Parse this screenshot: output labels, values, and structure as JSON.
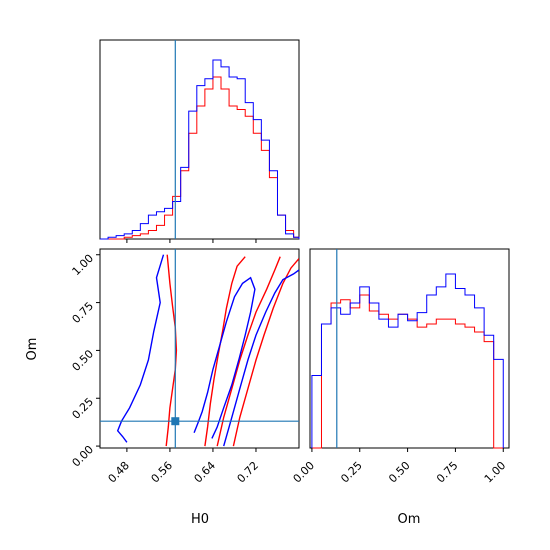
{
  "chart_data": {
    "type": "corner",
    "parameters": [
      "H0",
      "Om"
    ],
    "truths": {
      "H0": 0.57,
      "Om": 0.13
    },
    "colors": {
      "series_a": "#ff0000",
      "series_b": "#0000ff",
      "truth": "#1f77b4"
    },
    "xlabels": [
      "H0",
      "Om"
    ],
    "ylabel_2d": "Om",
    "H0_ticks": [
      "0.48",
      "0.56",
      "0.64",
      "0.72"
    ],
    "Om_ticks": [
      "0.00",
      "0.25",
      "0.50",
      "0.75",
      "1.00"
    ],
    "ranges": {
      "H0": [
        0.43,
        0.8
      ],
      "Om": [
        -0.01,
        1.03
      ]
    },
    "hist_H0": {
      "bin_edges": [
        0.43,
        0.445,
        0.46,
        0.475,
        0.49,
        0.505,
        0.52,
        0.535,
        0.55,
        0.565,
        0.58,
        0.595,
        0.61,
        0.625,
        0.64,
        0.655,
        0.67,
        0.685,
        0.7,
        0.715,
        0.73,
        0.745,
        0.76,
        0.775,
        0.79,
        0.8
      ],
      "series": [
        {
          "color": "red",
          "counts": [
            0,
            0,
            0,
            1,
            2,
            3,
            5,
            8,
            14,
            25,
            40,
            62,
            78,
            88,
            95,
            88,
            78,
            76,
            72,
            62,
            52,
            36,
            14,
            5,
            1
          ]
        },
        {
          "color": "blue",
          "counts": [
            0,
            1,
            2,
            3,
            5,
            9,
            14,
            16,
            18,
            22,
            42,
            75,
            90,
            94,
            105,
            101,
            95,
            94,
            80,
            70,
            58,
            40,
            14,
            3,
            1
          ]
        }
      ]
    },
    "hist_Om": {
      "bin_edges": [
        0.0,
        0.05,
        0.1,
        0.15,
        0.2,
        0.25,
        0.3,
        0.35,
        0.4,
        0.45,
        0.5,
        0.55,
        0.6,
        0.65,
        0.7,
        0.75,
        0.8,
        0.85,
        0.9,
        0.95,
        1.0
      ],
      "series": [
        {
          "color": "red",
          "counts": [
            0.0,
            0.77,
            0.9,
            0.92,
            0.87,
            0.95,
            0.85,
            0.83,
            0.8,
            0.83,
            0.8,
            0.75,
            0.77,
            0.8,
            0.8,
            0.77,
            0.75,
            0.72,
            0.66,
            0.0
          ]
        },
        {
          "color": "blue",
          "counts": [
            0.45,
            0.77,
            0.87,
            0.83,
            0.9,
            1.0,
            0.9,
            0.8,
            0.75,
            0.83,
            0.79,
            0.84,
            0.95,
            1.0,
            1.08,
            0.99,
            0.95,
            0.87,
            0.7,
            0.55
          ]
        }
      ]
    },
    "contours": [
      {
        "color": "red",
        "points": [
          [
            0.555,
            1.0
          ],
          [
            0.56,
            0.85
          ],
          [
            0.565,
            0.73
          ],
          [
            0.57,
            0.62
          ],
          [
            0.572,
            0.5
          ],
          [
            0.57,
            0.4
          ],
          [
            0.565,
            0.3
          ],
          [
            0.56,
            0.2
          ],
          [
            0.557,
            0.1
          ],
          [
            0.553,
            0.0
          ]
        ]
      },
      {
        "color": "red",
        "points": [
          [
            0.625,
            0.0
          ],
          [
            0.63,
            0.1
          ],
          [
            0.635,
            0.22
          ],
          [
            0.642,
            0.35
          ],
          [
            0.65,
            0.48
          ],
          [
            0.658,
            0.6
          ],
          [
            0.665,
            0.72
          ],
          [
            0.675,
            0.85
          ],
          [
            0.685,
            0.94
          ],
          [
            0.7,
            0.99
          ]
        ]
      },
      {
        "color": "red",
        "points": [
          [
            0.648,
            0.0
          ],
          [
            0.66,
            0.15
          ],
          [
            0.675,
            0.3
          ],
          [
            0.69,
            0.45
          ],
          [
            0.705,
            0.58
          ],
          [
            0.72,
            0.7
          ],
          [
            0.74,
            0.82
          ],
          [
            0.755,
            0.92
          ],
          [
            0.765,
            0.99
          ]
        ]
      },
      {
        "color": "red",
        "points": [
          [
            0.678,
            0.0
          ],
          [
            0.69,
            0.15
          ],
          [
            0.705,
            0.3
          ],
          [
            0.72,
            0.45
          ],
          [
            0.735,
            0.58
          ],
          [
            0.752,
            0.72
          ],
          [
            0.77,
            0.85
          ],
          [
            0.785,
            0.93
          ],
          [
            0.8,
            0.98
          ]
        ]
      },
      {
        "color": "blue",
        "points": [
          [
            0.548,
            1.0
          ],
          [
            0.535,
            0.88
          ],
          [
            0.542,
            0.75
          ],
          [
            0.53,
            0.6
          ],
          [
            0.52,
            0.45
          ],
          [
            0.505,
            0.32
          ],
          [
            0.485,
            0.2
          ],
          [
            0.47,
            0.13
          ],
          [
            0.463,
            0.08
          ],
          [
            0.472,
            0.05
          ],
          [
            0.48,
            0.02
          ]
        ]
      },
      {
        "color": "blue",
        "points": [
          [
            0.605,
            0.07
          ],
          [
            0.612,
            0.12
          ],
          [
            0.62,
            0.18
          ],
          [
            0.63,
            0.28
          ],
          [
            0.64,
            0.4
          ],
          [
            0.652,
            0.52
          ],
          [
            0.665,
            0.65
          ],
          [
            0.68,
            0.78
          ],
          [
            0.695,
            0.85
          ],
          [
            0.71,
            0.88
          ],
          [
            0.718,
            0.82
          ],
          [
            0.71,
            0.7
          ],
          [
            0.7,
            0.58
          ],
          [
            0.688,
            0.45
          ],
          [
            0.675,
            0.32
          ],
          [
            0.66,
            0.2
          ],
          [
            0.648,
            0.1
          ],
          [
            0.638,
            0.04
          ]
        ]
      },
      {
        "color": "blue",
        "points": [
          [
            0.66,
            0.0
          ],
          [
            0.675,
            0.15
          ],
          [
            0.69,
            0.3
          ],
          [
            0.705,
            0.45
          ],
          [
            0.72,
            0.58
          ],
          [
            0.738,
            0.7
          ],
          [
            0.755,
            0.8
          ],
          [
            0.77,
            0.87
          ],
          [
            0.79,
            0.9
          ],
          [
            0.8,
            0.92
          ]
        ]
      }
    ]
  }
}
